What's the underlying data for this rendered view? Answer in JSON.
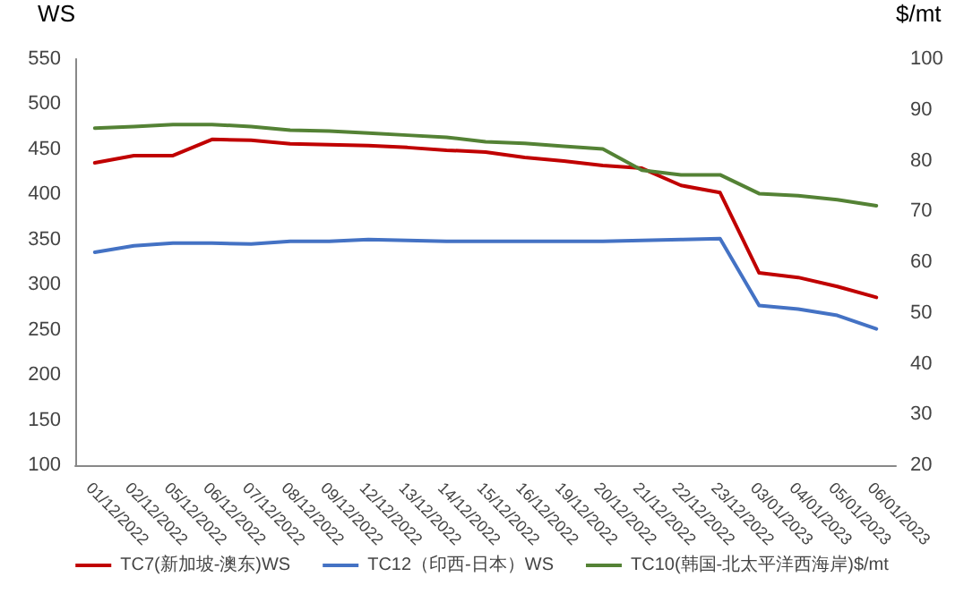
{
  "chart_data": {
    "type": "line",
    "categories": [
      "01/12/2022",
      "02/12/2022",
      "05/12/2022",
      "06/12/2022",
      "07/12/2022",
      "08/12/2022",
      "09/12/2022",
      "12/12/2022",
      "13/12/2022",
      "14/12/2022",
      "15/12/2022",
      "16/12/2022",
      "19/12/2022",
      "20/12/2022",
      "21/12/2022",
      "22/12/2022",
      "23/12/2022",
      "03/01/2023",
      "04/01/2023",
      "05/01/2023",
      "06/01/2023"
    ],
    "ylabel": "WS",
    "y2label": "$/mt",
    "ylim": [
      100,
      550
    ],
    "yticks": [
      100,
      150,
      200,
      250,
      300,
      350,
      400,
      450,
      500,
      550
    ],
    "y2lim": [
      20,
      100
    ],
    "y2ticks": [
      20,
      30,
      40,
      50,
      60,
      70,
      80,
      90,
      100
    ],
    "grid": false,
    "legend": "bottom",
    "marker": "none",
    "line_style": "solid",
    "series": [
      {
        "name": "TC7(新加坡-澳东)WS",
        "color": "#c00000",
        "values": [
          435,
          443,
          443,
          461,
          460,
          456,
          455,
          454,
          452,
          449,
          447,
          441,
          437,
          432,
          429,
          410,
          402,
          313,
          308,
          298,
          286
        ]
      },
      {
        "name": "TC12（印西-日本）WS",
        "color": "#4472c4",
        "values": [
          336,
          343,
          346,
          346,
          345,
          348,
          348,
          350,
          349,
          348,
          348,
          348,
          348,
          348,
          349,
          350,
          351,
          277,
          273,
          266,
          251
        ]
      },
      {
        "name": "TC10(韩国-北太平洋西海岸)$/mt",
        "color": "#548235",
        "axis": "y2",
        "values": [
          86.4,
          86.7,
          87.1,
          87.1,
          86.7,
          86.0,
          85.8,
          85.4,
          85.0,
          84.6,
          83.7,
          83.4,
          82.8,
          82.3,
          78.1,
          77.2,
          77.2,
          73.5,
          73.1,
          72.3,
          71.1
        ]
      }
    ]
  }
}
